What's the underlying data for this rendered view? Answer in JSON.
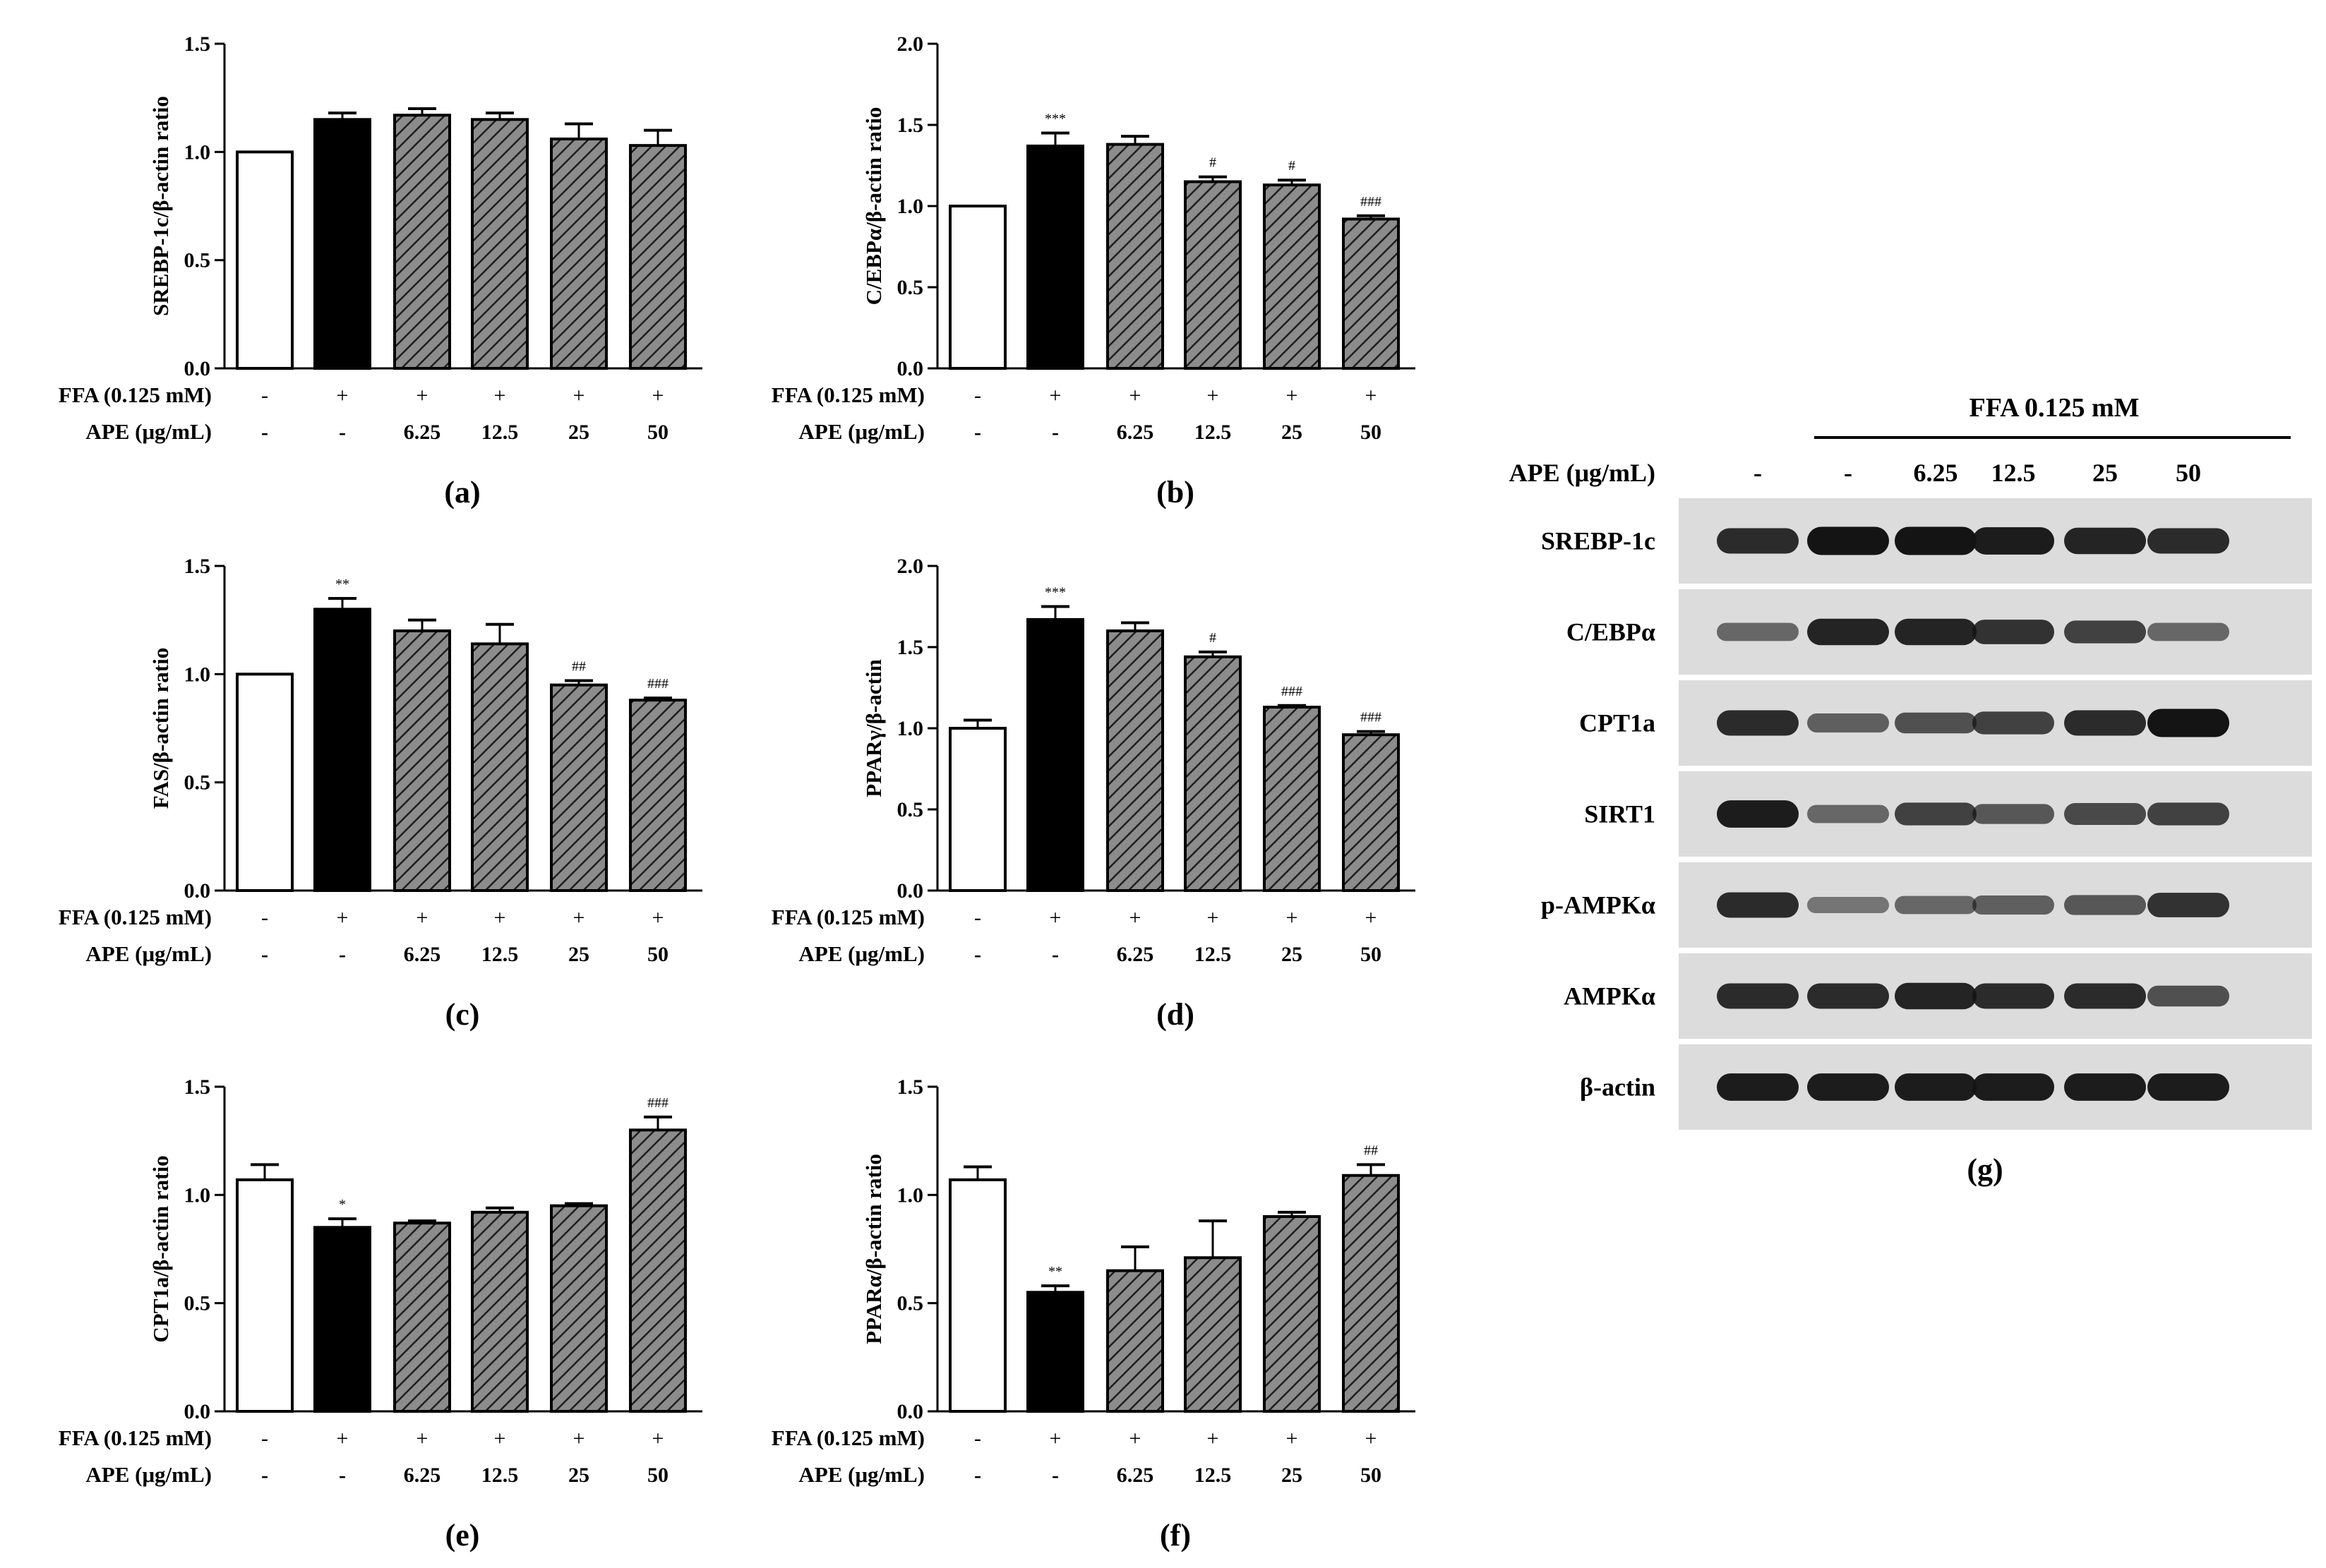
{
  "chart_data": [
    {
      "type": "bar",
      "panel_label": "(a)",
      "ylabel": "SREBP-1c/β-actin ratio",
      "ylim": [
        0,
        1.5
      ],
      "yticks": [
        "0.0",
        "0.5",
        "1.0",
        "1.5"
      ],
      "values": [
        1.0,
        1.15,
        1.17,
        1.15,
        1.06,
        1.03
      ],
      "errors": [
        0,
        0.03,
        0.03,
        0.03,
        0.07,
        0.07
      ],
      "annotations": [
        "",
        "",
        "",
        "",
        "",
        ""
      ]
    },
    {
      "type": "bar",
      "panel_label": "(b)",
      "ylabel": "C/EBPα/β-actin ratio",
      "ylim": [
        0,
        2.0
      ],
      "yticks": [
        "0.0",
        "0.5",
        "1.0",
        "1.5",
        "2.0"
      ],
      "values": [
        1.0,
        1.37,
        1.38,
        1.15,
        1.13,
        0.92
      ],
      "errors": [
        0,
        0.08,
        0.05,
        0.03,
        0.03,
        0.02
      ],
      "annotations": [
        "",
        "***",
        "",
        "#",
        "#",
        "###"
      ]
    },
    {
      "type": "bar",
      "panel_label": "(c)",
      "ylabel": "FAS/β-actin ratio",
      "ylim": [
        0,
        1.5
      ],
      "yticks": [
        "0.0",
        "0.5",
        "1.0",
        "1.5"
      ],
      "values": [
        1.0,
        1.3,
        1.2,
        1.14,
        0.95,
        0.88
      ],
      "errors": [
        0,
        0.05,
        0.05,
        0.09,
        0.02,
        0.01
      ],
      "annotations": [
        "",
        "**",
        "",
        "",
        "##",
        "###"
      ]
    },
    {
      "type": "bar",
      "panel_label": "(d)",
      "ylabel": "PPARγ/β-actin",
      "ylim": [
        0,
        2.0
      ],
      "yticks": [
        "0.0",
        "0.5",
        "1.0",
        "1.5",
        "2.0"
      ],
      "values": [
        1.0,
        1.67,
        1.6,
        1.44,
        1.13,
        0.96
      ],
      "errors": [
        0.05,
        0.08,
        0.05,
        0.03,
        0.01,
        0.02
      ],
      "annotations": [
        "",
        "***",
        "",
        "#",
        "###",
        "###"
      ]
    },
    {
      "type": "bar",
      "panel_label": "(e)",
      "ylabel": "CPT1a/β-actin ratio",
      "ylim": [
        0,
        1.5
      ],
      "yticks": [
        "0.0",
        "0.5",
        "1.0",
        "1.5"
      ],
      "values": [
        1.07,
        0.85,
        0.87,
        0.92,
        0.95,
        1.3
      ],
      "errors": [
        0.07,
        0.04,
        0.01,
        0.02,
        0.01,
        0.06
      ],
      "annotations": [
        "",
        "*",
        "",
        "",
        "",
        "###"
      ]
    },
    {
      "type": "bar",
      "panel_label": "(f)",
      "ylabel": "PPARα/β-actin ratio",
      "ylim": [
        0,
        1.5
      ],
      "yticks": [
        "0.0",
        "0.5",
        "1.0",
        "1.5"
      ],
      "values": [
        1.07,
        0.55,
        0.65,
        0.71,
        0.9,
        1.09
      ],
      "errors": [
        0.06,
        0.03,
        0.11,
        0.17,
        0.02,
        0.05
      ],
      "annotations": [
        "",
        "**",
        "",
        "",
        "",
        "##"
      ]
    }
  ],
  "conditions": {
    "ffa_label": "FFA (0.125 mM)",
    "ape_label": "APE (μg/mL)",
    "ffa": [
      "-",
      "+",
      "+",
      "+",
      "+",
      "+"
    ],
    "ape": [
      "-",
      "-",
      "6.25",
      "12.5",
      "25",
      "50"
    ]
  },
  "bar_styles": [
    "open",
    "solid",
    "hatched",
    "hatched",
    "hatched",
    "hatched"
  ],
  "western_blot": {
    "panel_label": "(g)",
    "header": "FFA 0.125 mM",
    "ape_label": "APE (μg/mL)",
    "lanes": [
      "-",
      "-",
      "6.25",
      "12.5",
      "25",
      "50"
    ],
    "proteins": [
      "SREBP-1c",
      "C/EBPα",
      "CPT1a",
      "SIRT1",
      "p-AMPKα",
      "AMPKα",
      "β-actin"
    ],
    "band_intensity": [
      [
        0.85,
        1.0,
        1.0,
        0.95,
        0.9,
        0.85
      ],
      [
        0.45,
        0.9,
        0.9,
        0.8,
        0.7,
        0.45
      ],
      [
        0.85,
        0.5,
        0.6,
        0.7,
        0.85,
        1.0
      ],
      [
        0.95,
        0.45,
        0.7,
        0.55,
        0.65,
        0.7
      ],
      [
        0.85,
        0.35,
        0.45,
        0.5,
        0.55,
        0.8
      ],
      [
        0.85,
        0.85,
        0.9,
        0.85,
        0.85,
        0.6
      ],
      [
        0.95,
        0.95,
        0.95,
        0.95,
        0.95,
        0.95
      ]
    ]
  },
  "colors": {
    "ink": "#000000",
    "hatch_fill": "#8c8c8c",
    "blot_bg": "#dcdcdc",
    "band": "#141414"
  }
}
